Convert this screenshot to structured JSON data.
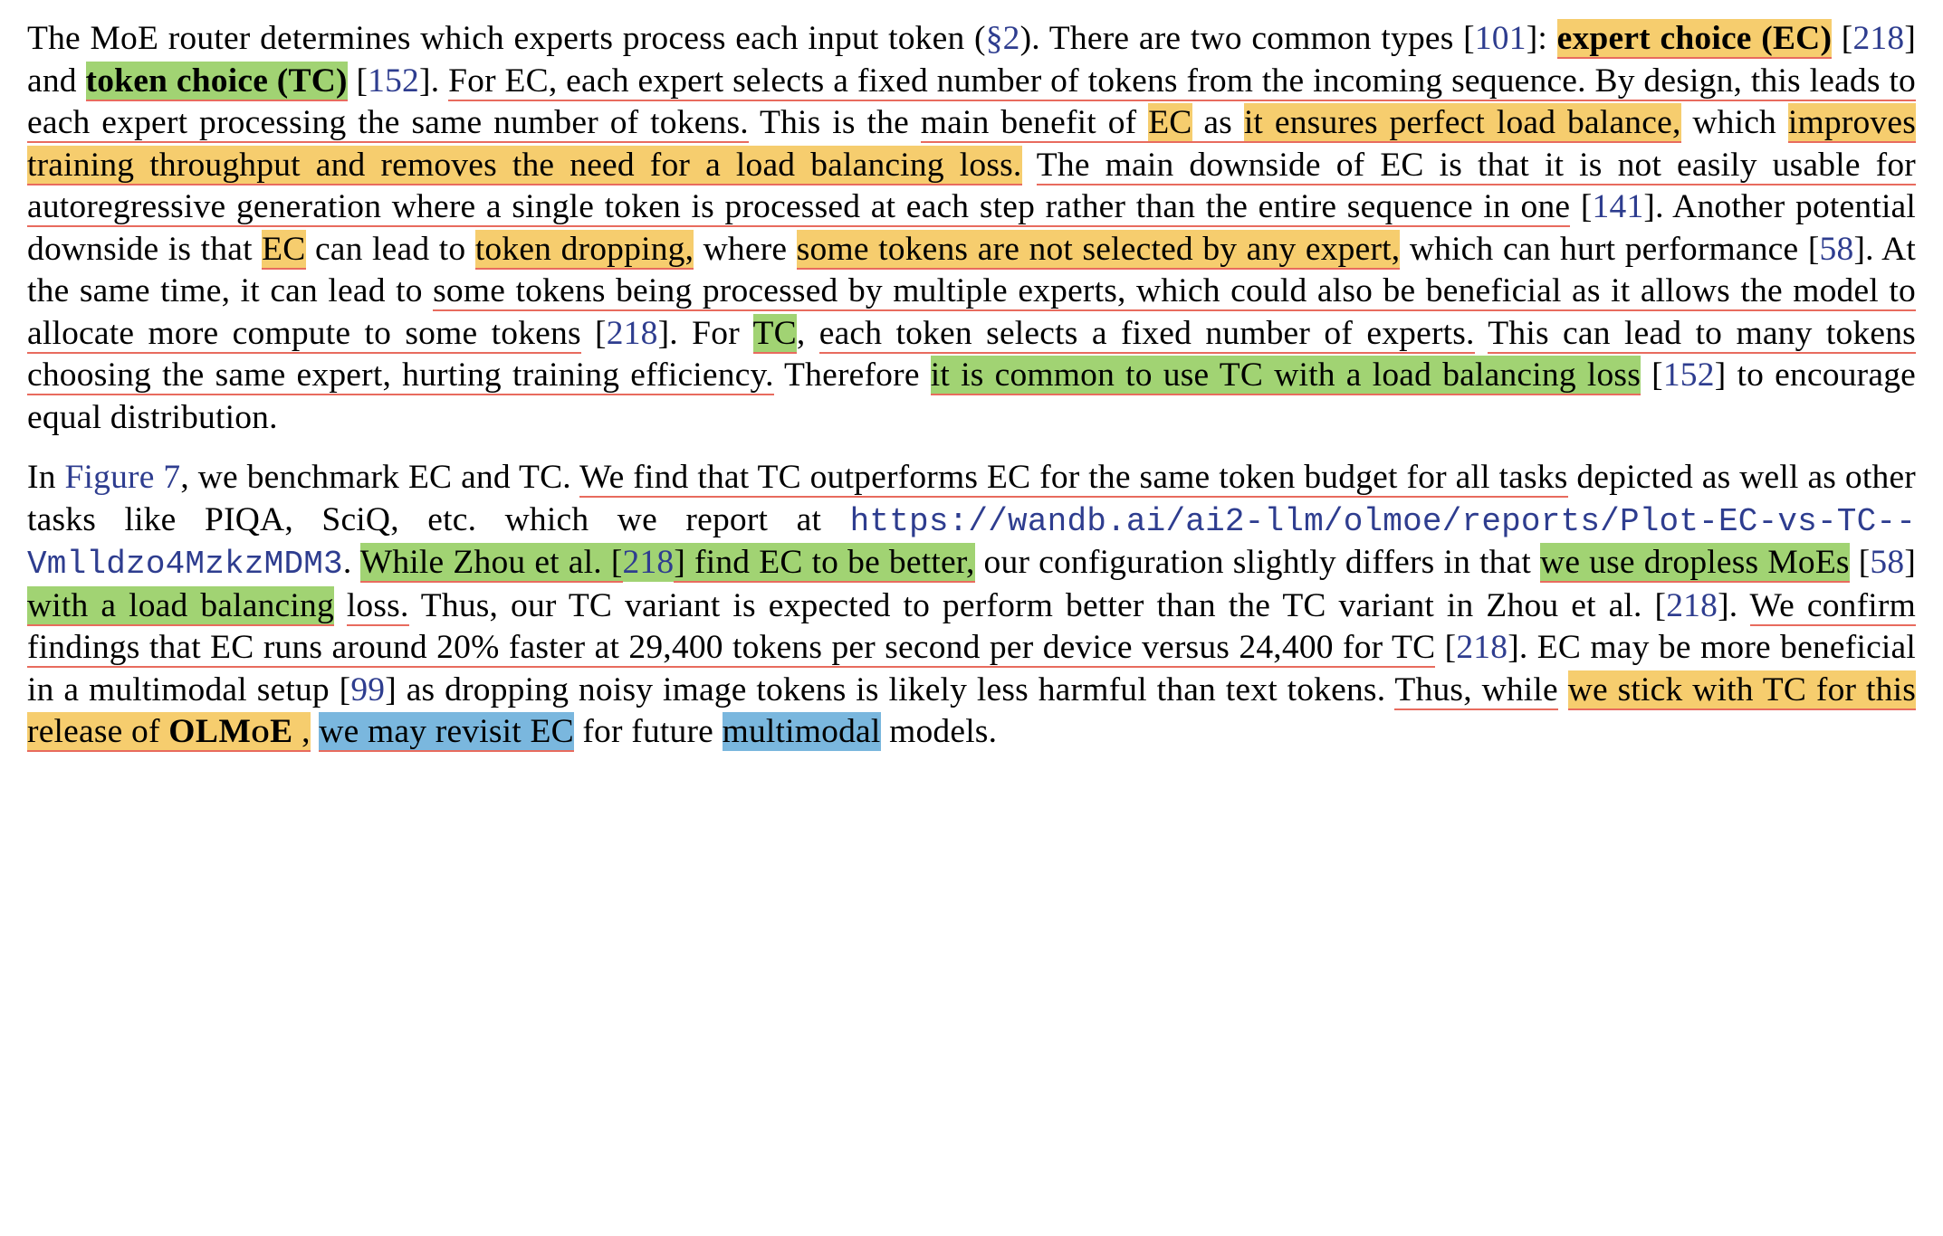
{
  "colors": {
    "text": "#000000",
    "cite": "#2e3d8f",
    "highlight_yellow": "#f6cd6e",
    "highlight_green": "#a1d373",
    "highlight_blue": "#7ab7de",
    "underline_red": "#e86b5e",
    "background": "#ffffff"
  },
  "typography": {
    "font_family": "Times New Roman",
    "font_size_pt": 28,
    "line_height": 1.24,
    "mono_font_family": "Courier New"
  },
  "cites": {
    "sec2": "§2",
    "c101": "101",
    "c218a": "218",
    "c152a": "152",
    "c141": "141",
    "c58a": "58",
    "c218b": "218",
    "c152b": "152",
    "fig7": "Figure 7",
    "c218c": "218",
    "c58b": "58",
    "c218d": "218",
    "c218e": "218",
    "c99": "99"
  },
  "p1": {
    "t1": "The MoE router determines which experts process each input token (",
    "t2": "). There are two common types [",
    "t3": "]: ",
    "ec_bold": "expert choice (EC)",
    "t4": " [",
    "t5": "] and ",
    "tc_bold": "token choice (TC)",
    "t6": " [",
    "t7": "]. ",
    "s_for_ec": "For EC, each expert selects a fixed number of tokens from the incoming sequence. By design, this leads to each expert processing the same number of tokens.",
    "t8": " This is the ",
    "s_main_benefit": "main benefit of ",
    "ec_hl": "EC",
    "t_as": " as ",
    "s_ensures": "it ensures perfect load balance,",
    "t9": " which ",
    "s_improves": "improves training throughput and removes the need for a load balancing loss.",
    "t10": " ",
    "s_downside": "The main downside of EC is that it is not easily usable for autoregressive generation where a single token is processed at each step rather than the entire sequence in one",
    "t11a": " [",
    "t11b": "]. Another potential downside is that ",
    "ec_hl2": "EC",
    "t12": " can lead to ",
    "s_token_drop": "token dropping,",
    "t13": " where ",
    "s_some_tokens": "some tokens are not selected by any expert,",
    "t14": " which can hurt performance",
    "t14a": " [",
    "t14b": "]. At the same time, it can lead to ",
    "s_multi_exp": "some tokens being processed by multiple experts, which could also be beneficial as it allows the model to allocate more compute to some tokens",
    "t15a": " [",
    "t15b": "]. For ",
    "tc_hl": "TC",
    "t16": ", ",
    "s_tc_select": "each token selects a fixed number of experts.",
    "t17": " ",
    "s_tc_many": "This can lead to many tokens choosing the same expert, hurting training efficiency.",
    "t18": " Therefore ",
    "s_common_lb": "it is common to use TC with a load balancing loss",
    "t19a": " [",
    "t19b": "] to encourage equal distribution."
  },
  "p2": {
    "t1": "In ",
    "t2": ", we benchmark EC and TC. ",
    "s_find": "We find that TC outperforms EC for the same token budget for all tasks",
    "t3": " depicted as well as other tasks like PIQA, SciQ, etc. which we report at ",
    "url": "https://wandb.ai/ai2-llm/olmoe/reports/Plot-EC-vs-TC--Vmlldzo4MzkzMDM3",
    "t4": ". ",
    "s_zhou": "While Zhou et al. [",
    "s_zhou2": "] find EC to be better,",
    "t5": " our configuration slightly differs in that ",
    "s_dropless1": "we use dropless MoEs",
    "t5c": " [",
    "t5d": "] ",
    "s_dropless2": "with a load balancing",
    "t6": " ",
    "s_loss": "loss.",
    "t7": " Thus, our TC variant is expected to perform better than the TC variant in Zhou et al. [",
    "t8": "]. ",
    "s_confirm": "We confirm findings that EC runs around 20% faster at 29,400 tokens per second per device versus 24,400 for TC",
    "t9a": " [",
    "t9b": "]. EC may be more beneficial in a multimodal setup [",
    "t10": "] as dropping noisy image tokens is likely less harmful than text tokens. ",
    "s_thus": "Thus, while",
    "t10b": " ",
    "s_stick1": "we stick with TC for this release of ",
    "olmoe": "OLMoE",
    "s_stick2": " ,",
    "t11": " ",
    "s_revisit": "we may revisit EC",
    "t12": " for future ",
    "s_multimodal": "multimodal",
    "t13": " models."
  }
}
